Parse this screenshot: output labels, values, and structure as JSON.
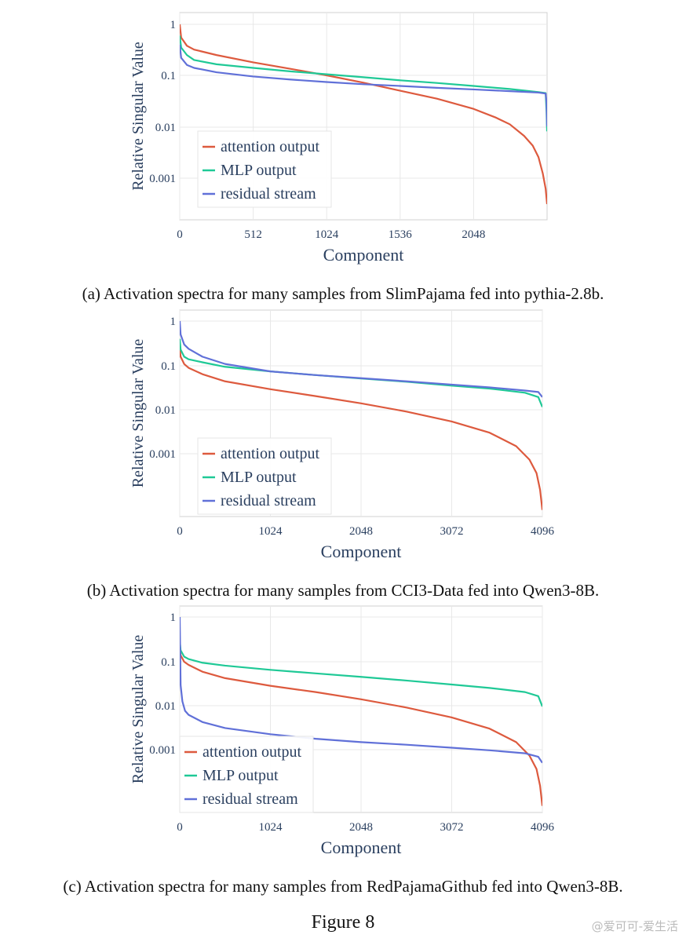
{
  "figure_title": "Figure 8",
  "watermark": "@爱可可-爱生活",
  "colors": {
    "attention": "#dd5a3e",
    "mlp": "#1fc996",
    "residual": "#6070d8",
    "grid": "#e8e8e8",
    "axis_text": "#2a3f5f"
  },
  "chart_data": [
    {
      "type": "line",
      "caption": "(a) Activation spectra for many samples from SlimPajama fed into pythia-2.8b.",
      "xlabel": "Component",
      "ylabel": "Relative Singular Value",
      "xlim": [
        0,
        2560
      ],
      "xticks": [
        0,
        512,
        1024,
        1536,
        2048
      ],
      "y_scale": "log",
      "ylim": [
        0.0003,
        1.3
      ],
      "yticks": [
        "1",
        "0.1",
        "0.01",
        "0.001"
      ],
      "grid": true,
      "legend_position": "bottom-left",
      "series": [
        {
          "name": "attention output",
          "x": [
            0,
            10,
            50,
            100,
            256,
            512,
            768,
            1024,
            1280,
            1536,
            1792,
            2048,
            2200,
            2300,
            2400,
            2460,
            2500,
            2530,
            2550,
            2560
          ],
          "y": [
            1,
            0.55,
            0.38,
            0.32,
            0.25,
            0.18,
            0.135,
            0.1,
            0.072,
            0.05,
            0.035,
            0.022,
            0.015,
            0.011,
            0.0065,
            0.0042,
            0.0025,
            0.0012,
            0.0006,
            0.0003
          ]
        },
        {
          "name": "MLP output",
          "x": [
            0,
            10,
            50,
            100,
            256,
            512,
            768,
            1024,
            1280,
            1536,
            1792,
            2048,
            2300,
            2500,
            2550,
            2556,
            2560
          ],
          "y": [
            0.6,
            0.35,
            0.25,
            0.2,
            0.165,
            0.14,
            0.12,
            0.105,
            0.092,
            0.08,
            0.071,
            0.062,
            0.054,
            0.047,
            0.045,
            0.02,
            0.008
          ]
        },
        {
          "name": "residual stream",
          "x": [
            0,
            10,
            50,
            100,
            256,
            512,
            768,
            1024,
            1280,
            1536,
            1792,
            2048,
            2300,
            2500,
            2550,
            2556,
            2560
          ],
          "y": [
            0.4,
            0.22,
            0.16,
            0.14,
            0.115,
            0.095,
            0.083,
            0.074,
            0.067,
            0.062,
            0.057,
            0.053,
            0.049,
            0.046,
            0.044,
            0.03,
            0.01
          ]
        }
      ]
    },
    {
      "type": "line",
      "caption": "(b) Activation spectra for many samples from CCI3-Data fed into Qwen3-8B.",
      "xlabel": "Component",
      "ylabel": "Relative Singular Value",
      "xlim": [
        0,
        4096
      ],
      "xticks": [
        0,
        1024,
        2048,
        3072,
        4096
      ],
      "y_scale": "log",
      "ylim": [
        4e-05,
        1.3
      ],
      "yticks": [
        "1",
        "0.1",
        "0.01",
        "0.001"
      ],
      "grid": true,
      "legend_position": "bottom-left",
      "series": [
        {
          "name": "attention output",
          "x": [
            0,
            10,
            50,
            100,
            256,
            512,
            1024,
            1536,
            2048,
            2560,
            3072,
            3500,
            3800,
            3950,
            4030,
            4070,
            4096
          ],
          "y": [
            0.25,
            0.16,
            0.11,
            0.09,
            0.065,
            0.045,
            0.03,
            0.021,
            0.0145,
            0.0095,
            0.0057,
            0.0032,
            0.0016,
            0.0008,
            0.0004,
            0.00017,
            6e-05
          ]
        },
        {
          "name": "MLP output",
          "x": [
            0,
            10,
            50,
            100,
            256,
            512,
            1024,
            1536,
            2048,
            2560,
            3072,
            3500,
            3900,
            4050,
            4096
          ],
          "y": [
            0.4,
            0.23,
            0.16,
            0.14,
            0.12,
            0.095,
            0.075,
            0.062,
            0.052,
            0.044,
            0.036,
            0.031,
            0.025,
            0.02,
            0.012
          ]
        },
        {
          "name": "residual stream",
          "x": [
            0,
            10,
            50,
            100,
            256,
            512,
            1024,
            1536,
            2048,
            2560,
            3072,
            3500,
            3900,
            4050,
            4096
          ],
          "y": [
            1,
            0.5,
            0.3,
            0.24,
            0.16,
            0.11,
            0.075,
            0.062,
            0.053,
            0.045,
            0.038,
            0.033,
            0.028,
            0.026,
            0.02
          ]
        }
      ]
    },
    {
      "type": "line",
      "caption": "(c) Activation spectra for many samples from RedPajamaGithub fed into Qwen3-8B.",
      "xlabel": "Component",
      "ylabel": "Relative Singular Value",
      "xlim": [
        0,
        4096
      ],
      "xticks": [
        0,
        1024,
        2048,
        3072,
        4096
      ],
      "y_scale": "log",
      "ylim": [
        4e-05,
        1.3
      ],
      "yticks": [
        "1",
        "0.1",
        "0.01",
        "0.001"
      ],
      "grid": true,
      "legend_position": "bottom-left",
      "series": [
        {
          "name": "attention output",
          "x": [
            0,
            10,
            50,
            100,
            256,
            512,
            1024,
            1536,
            2048,
            2560,
            3072,
            3500,
            3800,
            3950,
            4030,
            4070,
            4096
          ],
          "y": [
            0.22,
            0.14,
            0.1,
            0.085,
            0.06,
            0.043,
            0.029,
            0.021,
            0.0145,
            0.0095,
            0.0057,
            0.0032,
            0.0016,
            0.0008,
            0.0004,
            0.00017,
            6e-05
          ]
        },
        {
          "name": "MLP output",
          "x": [
            0,
            10,
            50,
            100,
            256,
            512,
            1024,
            1536,
            2048,
            2560,
            3072,
            3500,
            3900,
            4050,
            4096
          ],
          "y": [
            0.3,
            0.18,
            0.13,
            0.115,
            0.095,
            0.082,
            0.066,
            0.055,
            0.046,
            0.038,
            0.031,
            0.026,
            0.021,
            0.017,
            0.01
          ]
        },
        {
          "name": "residual stream",
          "x": [
            0,
            10,
            30,
            60,
            100,
            256,
            512,
            1024,
            1536,
            2048,
            2560,
            3072,
            3500,
            3900,
            4050,
            4096
          ],
          "y": [
            1,
            0.03,
            0.013,
            0.008,
            0.0065,
            0.0045,
            0.0033,
            0.0024,
            0.0019,
            0.0016,
            0.0014,
            0.0012,
            0.00105,
            0.0009,
            0.00075,
            0.00055
          ]
        }
      ]
    }
  ]
}
